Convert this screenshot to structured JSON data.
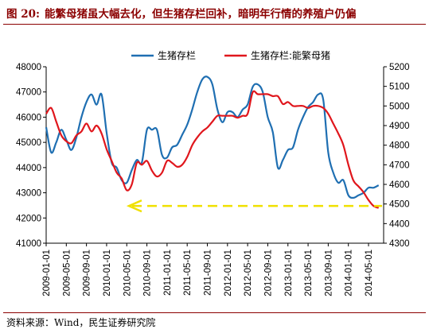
{
  "figure": {
    "number": "图 20:",
    "title": "能繁母猪虽大幅去化，但生猪存栏回补，暗明年行情的养殖户仍偏",
    "source": "资料来源：Wind，民生证券研究院"
  },
  "colors": {
    "series_blue": "#1f6fb2",
    "series_red": "#e0161c",
    "annotation": "#f0e000",
    "title": "#8b0000"
  },
  "chart_data": {
    "type": "line",
    "title": "",
    "xlabel": "",
    "ylabel": "",
    "dual_axis": true,
    "grid": false,
    "legend_position": "top",
    "ylim_left": [
      41000,
      48000
    ],
    "ylim_right": [
      4300,
      5200
    ],
    "left_ticks": [
      "48000",
      "47000",
      "46000",
      "45000",
      "44000",
      "43000",
      "42000",
      "41000"
    ],
    "right_ticks": [
      "5200",
      "5100",
      "5000",
      "4900",
      "4800",
      "4700",
      "4600",
      "4500",
      "4400",
      "4300"
    ],
    "x_tick_labels": [
      "2009-01-01",
      "2009-05-01",
      "2009-09-01",
      "2010-01-01",
      "2010-05-01",
      "2010-09-01",
      "2011-01-01",
      "2011-05-01",
      "2011-09-01",
      "2012-01-01",
      "2012-05-01",
      "2012-09-01",
      "2013-01-01",
      "2013-05-01",
      "2013-09-01",
      "2014-01-01",
      "2014-05-01"
    ],
    "x_start": "2009-01-01",
    "x_end": "2014-08-01",
    "series": [
      {
        "name": "生猪存栏",
        "axis": "left",
        "color": "#1f6fb2",
        "x": [
          "2009-01",
          "2009-02",
          "2009-03",
          "2009-04",
          "2009-05",
          "2009-06",
          "2009-07",
          "2009-08",
          "2009-09",
          "2009-10",
          "2009-11",
          "2009-12",
          "2010-01",
          "2010-02",
          "2010-03",
          "2010-04",
          "2010-05",
          "2010-06",
          "2010-07",
          "2010-08",
          "2010-09",
          "2010-10",
          "2010-11",
          "2010-12",
          "2011-01",
          "2011-02",
          "2011-03",
          "2011-04",
          "2011-05",
          "2011-06",
          "2011-07",
          "2011-08",
          "2011-09",
          "2011-10",
          "2011-11",
          "2011-12",
          "2012-01",
          "2012-02",
          "2012-03",
          "2012-04",
          "2012-05",
          "2012-06",
          "2012-07",
          "2012-08",
          "2012-09",
          "2012-10",
          "2012-11",
          "2012-12",
          "2013-01",
          "2013-02",
          "2013-03",
          "2013-04",
          "2013-05",
          "2013-06",
          "2013-07",
          "2013-08",
          "2013-09",
          "2013-10",
          "2013-11",
          "2013-12",
          "2014-01",
          "2014-02",
          "2014-03",
          "2014-04",
          "2014-05",
          "2014-06",
          "2014-07"
        ],
        "values": [
          45600,
          44600,
          45000,
          45500,
          45100,
          44700,
          45200,
          46000,
          46600,
          46900,
          46500,
          46900,
          45400,
          44200,
          44000,
          43500,
          43400,
          43900,
          44300,
          44200,
          45500,
          45500,
          45500,
          44500,
          44400,
          44800,
          44900,
          45300,
          45700,
          46300,
          47000,
          47500,
          47600,
          47300,
          46300,
          45800,
          46200,
          46200,
          46000,
          46300,
          46500,
          47200,
          47300,
          47000,
          46000,
          45400,
          44000,
          44300,
          44700,
          44800,
          45500,
          46000,
          46400,
          46600,
          46900,
          46700,
          44600,
          43800,
          43400,
          43500,
          42900,
          42800,
          42900,
          43000,
          43200,
          43200,
          43300
        ]
      },
      {
        "name": "生猪存栏:能繁母猪",
        "axis": "right",
        "color": "#e0161c",
        "x": [
          "2009-01",
          "2009-02",
          "2009-03",
          "2009-04",
          "2009-05",
          "2009-06",
          "2009-07",
          "2009-08",
          "2009-09",
          "2009-10",
          "2009-11",
          "2009-12",
          "2010-01",
          "2010-02",
          "2010-03",
          "2010-04",
          "2010-05",
          "2010-06",
          "2010-07",
          "2010-08",
          "2010-09",
          "2010-10",
          "2010-11",
          "2010-12",
          "2011-01",
          "2011-02",
          "2011-03",
          "2011-04",
          "2011-05",
          "2011-06",
          "2011-07",
          "2011-08",
          "2011-09",
          "2011-10",
          "2011-11",
          "2011-12",
          "2012-01",
          "2012-02",
          "2012-03",
          "2012-04",
          "2012-05",
          "2012-06",
          "2012-07",
          "2012-08",
          "2012-09",
          "2012-10",
          "2012-11",
          "2012-12",
          "2013-01",
          "2013-02",
          "2013-03",
          "2013-04",
          "2013-05",
          "2013-06",
          "2013-07",
          "2013-08",
          "2013-09",
          "2013-10",
          "2013-11",
          "2013-12",
          "2014-01",
          "2014-02",
          "2014-03",
          "2014-04",
          "2014-05",
          "2014-06",
          "2014-07"
        ],
        "values": [
          4960,
          4990,
          4920,
          4850,
          4820,
          4810,
          4850,
          4870,
          4910,
          4870,
          4900,
          4860,
          4780,
          4720,
          4660,
          4630,
          4570,
          4600,
          4710,
          4700,
          4720,
          4670,
          4640,
          4660,
          4720,
          4710,
          4690,
          4700,
          4740,
          4800,
          4840,
          4870,
          4890,
          4920,
          4950,
          4950,
          4950,
          4950,
          4940,
          4950,
          4960,
          5070,
          5060,
          5060,
          5060,
          5050,
          5050,
          5010,
          5020,
          5000,
          5000,
          5000,
          4990,
          5000,
          5000,
          4990,
          4960,
          4910,
          4860,
          4800,
          4700,
          4620,
          4590,
          4560,
          4520,
          4490,
          4480
        ]
      }
    ],
    "annotation": {
      "type": "dashed_arrow_left",
      "axis": "right",
      "value": 4490
    }
  }
}
